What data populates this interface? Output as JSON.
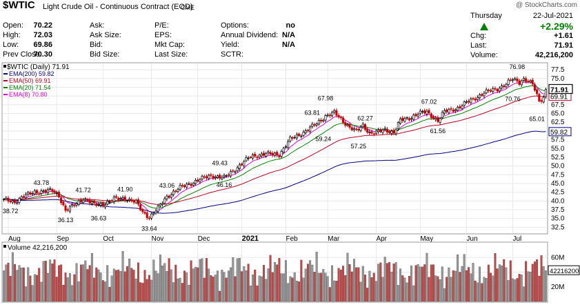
{
  "header": {
    "symbol": "$WTIC",
    "name": "Light Crude Oil - Continuous Contract (EOD)",
    "exchange": "CME",
    "watermark": "@ StockCharts.com",
    "fields": [
      {
        "label": "Open:",
        "value": "70.22"
      },
      {
        "label": "High:",
        "value": "72.03"
      },
      {
        "label": "Low:",
        "value": "69.86"
      },
      {
        "label": "Prev Close:",
        "value": "70.30"
      },
      {
        "label": "Ask:",
        "value": ""
      },
      {
        "label": "Ask Size:",
        "value": ""
      },
      {
        "label": "Bid:",
        "value": ""
      },
      {
        "label": "Bid Size:",
        "value": ""
      },
      {
        "label": "P/E:",
        "value": ""
      },
      {
        "label": "EPS:",
        "value": ""
      },
      {
        "label": "Mkt Cap:",
        "value": ""
      },
      {
        "label": "Last Size:",
        "value": ""
      },
      {
        "label": "Options:",
        "value": "no"
      },
      {
        "label": "Annual Dividend:",
        "value": "N/A"
      },
      {
        "label": "Yield:",
        "value": "N/A"
      },
      {
        "label": "SCTR:",
        "value": ""
      }
    ],
    "quote": {
      "day": "Thursday",
      "date": "22-Jul-2021",
      "change_pct": "+2.29%",
      "chg_label": "Chg:",
      "chg_value": "+1.61",
      "last_label": "Last:",
      "last_value": "71.91",
      "volume_label": "Volume:",
      "volume_value": "42,216,200"
    }
  },
  "chart_data": {
    "type": "candlestick",
    "title": "$WTIC (Daily) 71.91",
    "y_ticks": [
      32.5,
      35.0,
      37.5,
      40.0,
      42.5,
      45.0,
      47.5,
      50.0,
      52.5,
      55.0,
      57.5,
      60.0,
      62.5,
      65.0,
      67.5,
      70.0,
      72.5,
      75.0,
      77.5
    ],
    "ylim": [
      30.8,
      79.3
    ],
    "x_labels": [
      {
        "label": "Aug",
        "index": 2,
        "bold": false
      },
      {
        "label": "Sep",
        "index": 24,
        "bold": false
      },
      {
        "label": "Oct",
        "index": 45,
        "bold": false
      },
      {
        "label": "Nov",
        "index": 67,
        "bold": false
      },
      {
        "label": "Dec",
        "index": 88,
        "bold": false
      },
      {
        "label": "2021",
        "index": 108,
        "bold": true
      },
      {
        "label": "Feb",
        "index": 128,
        "bold": false
      },
      {
        "label": "Mar",
        "index": 147,
        "bold": false
      },
      {
        "label": "Apr",
        "index": 169,
        "bold": false
      },
      {
        "label": "May",
        "index": 189,
        "bold": false
      },
      {
        "label": "Jun",
        "index": 210,
        "bold": false
      },
      {
        "label": "Jul",
        "index": 231,
        "bold": false
      }
    ],
    "num_bars": 247,
    "price_anchors": [
      [
        0,
        40.2
      ],
      [
        5,
        39.8
      ],
      [
        8,
        41.0
      ],
      [
        14,
        42.6
      ],
      [
        22,
        42.9
      ],
      [
        25,
        41.6
      ],
      [
        28,
        37.2
      ],
      [
        32,
        38.8
      ],
      [
        36,
        40.8
      ],
      [
        41,
        38.9
      ],
      [
        45,
        39.1
      ],
      [
        50,
        40.5
      ],
      [
        55,
        40.8
      ],
      [
        60,
        39.6
      ],
      [
        63,
        36.8
      ],
      [
        66,
        35.4
      ],
      [
        70,
        37.9
      ],
      [
        74,
        41.3
      ],
      [
        80,
        43.8
      ],
      [
        88,
        45.9
      ],
      [
        94,
        47.3
      ],
      [
        100,
        46.6
      ],
      [
        104,
        48.6
      ],
      [
        112,
        52.7
      ],
      [
        118,
        53.4
      ],
      [
        125,
        53.3
      ],
      [
        130,
        57.6
      ],
      [
        136,
        59.6
      ],
      [
        142,
        62.1
      ],
      [
        146,
        64.3
      ],
      [
        150,
        65.2
      ],
      [
        153,
        63.4
      ],
      [
        157,
        61.1
      ],
      [
        160,
        59.8
      ],
      [
        163,
        61.6
      ],
      [
        166,
        59.5
      ],
      [
        169,
        59.5
      ],
      [
        173,
        60.4
      ],
      [
        177,
        59.6
      ],
      [
        180,
        63.0
      ],
      [
        184,
        63.7
      ],
      [
        188,
        65.0
      ],
      [
        192,
        65.4
      ],
      [
        197,
        63.0
      ],
      [
        200,
        65.5
      ],
      [
        206,
        66.6
      ],
      [
        212,
        68.8
      ],
      [
        218,
        70.9
      ],
      [
        224,
        72.1
      ],
      [
        228,
        73.4
      ],
      [
        231,
        74.8
      ],
      [
        234,
        74.0
      ],
      [
        236,
        75.0
      ],
      [
        240,
        73.3
      ],
      [
        243,
        68.6
      ],
      [
        245,
        69.7
      ],
      [
        246,
        71.9
      ]
    ],
    "annotations": [
      {
        "label": "43.78",
        "index": 17,
        "value": 43.78,
        "pos": "above"
      },
      {
        "label": "38.72",
        "index": 3,
        "value": 38.72,
        "pos": "below"
      },
      {
        "label": "36.13",
        "index": 28,
        "value": 36.13,
        "pos": "below"
      },
      {
        "label": "41.72",
        "index": 36,
        "value": 41.72,
        "pos": "above"
      },
      {
        "label": "36.63",
        "index": 43,
        "value": 36.63,
        "pos": "below"
      },
      {
        "label": "41.90",
        "index": 55,
        "value": 41.9,
        "pos": "above"
      },
      {
        "label": "33.64",
        "index": 66,
        "value": 33.64,
        "pos": "below"
      },
      {
        "label": "43.06",
        "index": 74,
        "value": 43.06,
        "pos": "above"
      },
      {
        "label": "46.16",
        "index": 100,
        "value": 46.16,
        "pos": "below"
      },
      {
        "label": "49.43",
        "index": 98,
        "value": 49.43,
        "pos": "above"
      },
      {
        "label": "63.81",
        "index": 140,
        "value": 63.81,
        "pos": "above"
      },
      {
        "label": "59.24",
        "index": 145,
        "value": 59.24,
        "pos": "below"
      },
      {
        "label": "67.98",
        "index": 146,
        "value": 67.98,
        "pos": "above"
      },
      {
        "label": "62.27",
        "index": 164,
        "value": 62.27,
        "pos": "above"
      },
      {
        "label": "57.25",
        "index": 161,
        "value": 57.25,
        "pos": "below"
      },
      {
        "label": "67.02",
        "index": 193,
        "value": 67.02,
        "pos": "above"
      },
      {
        "label": "61.56",
        "index": 197,
        "value": 61.56,
        "pos": "below"
      },
      {
        "label": "76.98",
        "index": 233,
        "value": 76.98,
        "pos": "above"
      },
      {
        "label": "70.76",
        "index": 231,
        "value": 70.76,
        "pos": "below"
      },
      {
        "label": "65.01",
        "index": 242,
        "value": 65.01,
        "pos": "below"
      }
    ],
    "series": [
      {
        "name": "EMA(200) 59.82",
        "color": "#000080",
        "period": 200,
        "last": 59.82,
        "tag_label": "59.82"
      },
      {
        "name": "EMA(50) 69.91",
        "color": "#c00020",
        "period": 50,
        "last": 69.91,
        "tag_label": "69.91"
      },
      {
        "name": "EMA(20) 71.54",
        "color": "#008000",
        "period": 20,
        "last": 71.54,
        "tag_label": "71.54"
      },
      {
        "name": "EMA(8) 70.80",
        "color": "#e000e0",
        "period": 8,
        "last": 70.8,
        "tag_label": "70.80"
      }
    ],
    "price_tag": {
      "label": "71.91",
      "value": 71.91
    },
    "volume": {
      "title": "Volume 42,216,200",
      "y_ticks_label": [
        "20M",
        "40M",
        "60M"
      ],
      "y_ticks_value": [
        20,
        40,
        60
      ],
      "ylim": [
        0,
        80
      ],
      "last_tag": "42216200",
      "last_value": 42.2,
      "base": 42,
      "amplitude": 18
    },
    "colors": {
      "up": "#000000",
      "down": "#cc0000",
      "vol_up": "#999999",
      "vol_down": "#cc4444",
      "grid": "#e8e8e8",
      "panel_border": "#999999"
    }
  }
}
